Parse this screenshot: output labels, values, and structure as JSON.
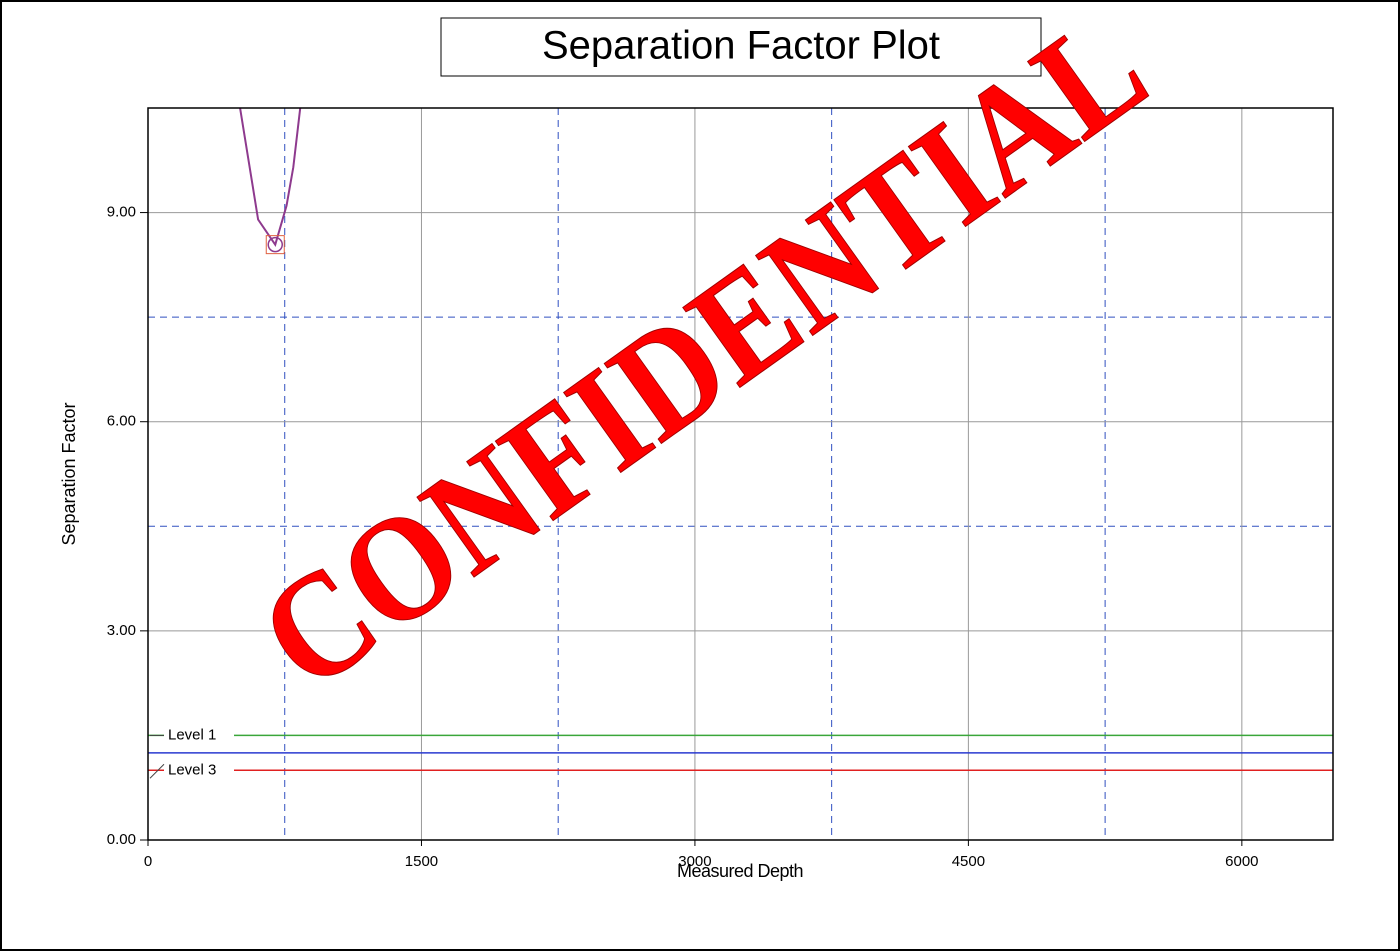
{
  "chart_data": {
    "type": "line",
    "title": "Separation Factor Plot",
    "xlabel": "Measured Depth",
    "ylabel": "Separation Factor",
    "watermark": "CONFIDENTIAL",
    "xlim": [
      0,
      6500
    ],
    "ylim": [
      0,
      10.5
    ],
    "xticks": [
      0,
      1500,
      3000,
      4500,
      6000
    ],
    "yticks": [
      {
        "value": 0,
        "label": "0.00"
      },
      {
        "value": 3,
        "label": "3.00"
      },
      {
        "value": 6,
        "label": "6.00"
      },
      {
        "value": 9,
        "label": "9.00"
      }
    ],
    "xminor": [
      750,
      2250,
      3750,
      5250
    ],
    "yminor": [
      4.5,
      7.5
    ],
    "grid": true,
    "series": [
      {
        "color": "#8e3a8e",
        "x": [
          505,
          604,
          698,
          760,
          797,
          835
        ],
        "values": [
          10.5,
          8.9,
          8.54,
          9.1,
          9.65,
          10.5
        ]
      }
    ],
    "marker": {
      "x": 698,
      "y": 8.54,
      "color": "#e06040"
    },
    "levels": [
      {
        "name": "Level 1",
        "value": 1.5,
        "color": "#3aa63a"
      },
      {
        "value": 1.25,
        "color": "#2a3ad0"
      },
      {
        "name": "Level 3",
        "value": 1.0,
        "color": "#e02020"
      }
    ]
  }
}
